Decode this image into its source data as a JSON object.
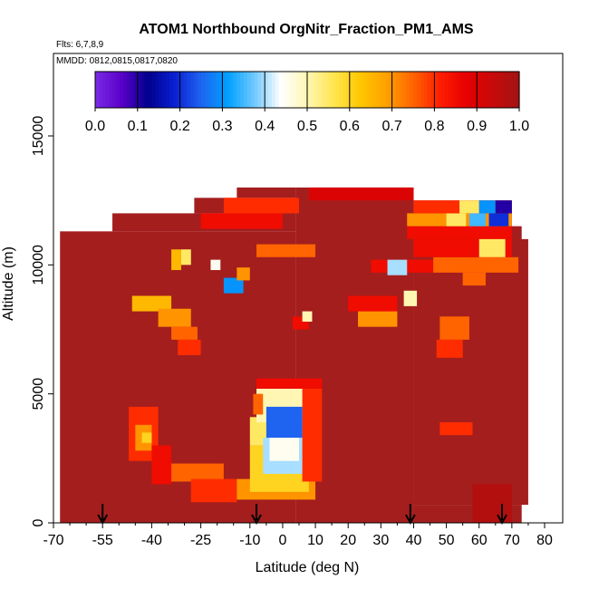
{
  "chart_data": {
    "type": "heatmap",
    "title": "ATOM1 Northbound OrgNitr_Fraction_PM1_AMS",
    "flights_label": "Flts: 6,7,8,9",
    "dates_label": "MMDD: 0812,0815,0817,0820",
    "xlabel": "Latitude (deg N)",
    "ylabel": "Altitude (m)",
    "xlim": [
      -70,
      80
    ],
    "ylim": [
      0,
      17500
    ],
    "x_ticks": [
      -70,
      -55,
      -40,
      -25,
      -10,
      0,
      10,
      20,
      30,
      40,
      50,
      60,
      70,
      80
    ],
    "x_tick_labels": [
      "-70",
      "-55",
      "-40",
      "-25",
      "-10",
      "0",
      "10",
      "20",
      "30",
      "40",
      "50",
      "60",
      "70",
      "80"
    ],
    "x_minor_ticks": [
      -65,
      -60,
      -50,
      -45,
      -35,
      -30,
      -20,
      -15,
      -5,
      5,
      15,
      25,
      35,
      45,
      55,
      65,
      75
    ],
    "y_ticks": [
      0,
      5000,
      10000,
      15000
    ],
    "y_tick_labels": [
      "0",
      "5000",
      "10000",
      "15000"
    ],
    "colorbar": {
      "ticks": [
        0.0,
        0.1,
        0.2,
        0.3,
        0.4,
        0.5,
        0.6,
        0.7,
        0.8,
        0.9,
        1.0
      ],
      "tick_labels": [
        "0.0",
        "0.1",
        "0.2",
        "0.3",
        "0.4",
        "0.5",
        "0.6",
        "0.7",
        "0.8",
        "0.9",
        "1.0"
      ],
      "colors": [
        "#7a2ae6",
        "#5a00c8",
        "#00008c",
        "#0a20d2",
        "#1e64f0",
        "#00a0ff",
        "#6ec8ff",
        "#ffffff",
        "#fff6b4",
        "#ffe650",
        "#ffc800",
        "#ffa000",
        "#ff6400",
        "#ff1e00",
        "#e60000",
        "#c80a0a",
        "#a01414"
      ]
    },
    "background_value": 0.97,
    "background_color": "#a41e1e",
    "coverage": [
      {
        "lat": [
          -68,
          4
        ],
        "alt": [
          0,
          11300
        ]
      },
      {
        "lat": [
          -52,
          4
        ],
        "alt": [
          11300,
          12000
        ]
      },
      {
        "lat": [
          -27,
          4
        ],
        "alt": [
          12000,
          12600
        ]
      },
      {
        "lat": [
          -14,
          4
        ],
        "alt": [
          12600,
          13000
        ]
      },
      {
        "lat": [
          4,
          40
        ],
        "alt": [
          0,
          13000
        ]
      },
      {
        "lat": [
          40,
          70
        ],
        "alt": [
          1200,
          12500
        ]
      },
      {
        "lat": [
          40,
          73
        ],
        "alt": [
          1200,
          11500
        ]
      },
      {
        "lat": [
          40,
          75
        ],
        "alt": [
          700,
          11000
        ]
      },
      {
        "lat": [
          40,
          73
        ],
        "alt": [
          0,
          700
        ]
      }
    ],
    "cells": [
      {
        "lat": [
          -47,
          -38
        ],
        "alt": [
          2400,
          4500
        ],
        "value": 0.8
      },
      {
        "lat": [
          -45,
          -40
        ],
        "alt": [
          2800,
          3800
        ],
        "value": 0.7
      },
      {
        "lat": [
          -43,
          -40
        ],
        "alt": [
          3100,
          3500
        ],
        "value": 0.6
      },
      {
        "lat": [
          -40,
          -34
        ],
        "alt": [
          1500,
          3000
        ],
        "value": 0.85
      },
      {
        "lat": [
          -34,
          -18
        ],
        "alt": [
          1600,
          2300
        ],
        "value": 0.75
      },
      {
        "lat": [
          -28,
          -14
        ],
        "alt": [
          800,
          1700
        ],
        "value": 0.8
      },
      {
        "lat": [
          -14,
          10
        ],
        "alt": [
          900,
          1700
        ],
        "value": 0.7
      },
      {
        "lat": [
          -10,
          8
        ],
        "alt": [
          1200,
          3000
        ],
        "value": 0.6
      },
      {
        "lat": [
          -10,
          7
        ],
        "alt": [
          3000,
          4100
        ],
        "value": 0.55
      },
      {
        "lat": [
          -8,
          8
        ],
        "alt": [
          3900,
          5200
        ],
        "value": 0.5
      },
      {
        "lat": [
          -6,
          6
        ],
        "alt": [
          1900,
          3300
        ],
        "value": 0.4
      },
      {
        "lat": [
          -5,
          6
        ],
        "alt": [
          3300,
          4500
        ],
        "value": 0.25
      },
      {
        "lat": [
          -4,
          5
        ],
        "alt": [
          2400,
          3300
        ],
        "value": 0.45
      },
      {
        "lat": [
          -9,
          -6
        ],
        "alt": [
          4200,
          5000
        ],
        "value": 0.75
      },
      {
        "lat": [
          6,
          12
        ],
        "alt": [
          1600,
          5200
        ],
        "value": 0.8
      },
      {
        "lat": [
          -8,
          12
        ],
        "alt": [
          5200,
          5600
        ],
        "value": 0.85
      },
      {
        "lat": [
          -46,
          -34
        ],
        "alt": [
          8200,
          8800
        ],
        "value": 0.65
      },
      {
        "lat": [
          -38,
          -28
        ],
        "alt": [
          7600,
          8300
        ],
        "value": 0.7
      },
      {
        "lat": [
          -34,
          -26
        ],
        "alt": [
          7100,
          7600
        ],
        "value": 0.75
      },
      {
        "lat": [
          -32,
          -25
        ],
        "alt": [
          6500,
          7100
        ],
        "value": 0.8
      },
      {
        "lat": [
          -34,
          -31
        ],
        "alt": [
          9800,
          10600
        ],
        "value": 0.65
      },
      {
        "lat": [
          -31,
          -28
        ],
        "alt": [
          10000,
          10600
        ],
        "value": 0.55
      },
      {
        "lat": [
          -22,
          -19
        ],
        "alt": [
          9800,
          10200
        ],
        "value": 0.45
      },
      {
        "lat": [
          -18,
          -12
        ],
        "alt": [
          8900,
          9500
        ],
        "value": 0.3
      },
      {
        "lat": [
          -14,
          -10
        ],
        "alt": [
          9400,
          9900
        ],
        "value": 0.7
      },
      {
        "lat": [
          -25,
          0
        ],
        "alt": [
          11400,
          12000
        ],
        "value": 0.85
      },
      {
        "lat": [
          -18,
          5
        ],
        "alt": [
          12000,
          12600
        ],
        "value": 0.8
      },
      {
        "lat": [
          -8,
          10
        ],
        "alt": [
          10300,
          10800
        ],
        "value": 0.75
      },
      {
        "lat": [
          3,
          8
        ],
        "alt": [
          7500,
          8000
        ],
        "value": 0.85
      },
      {
        "lat": [
          6,
          9
        ],
        "alt": [
          7800,
          8200
        ],
        "value": 0.5
      },
      {
        "lat": [
          23,
          35
        ],
        "alt": [
          7600,
          8200
        ],
        "value": 0.7
      },
      {
        "lat": [
          20,
          35
        ],
        "alt": [
          8200,
          8800
        ],
        "value": 0.85
      },
      {
        "lat": [
          37,
          41
        ],
        "alt": [
          8400,
          9000
        ],
        "value": 0.5
      },
      {
        "lat": [
          48,
          57
        ],
        "alt": [
          7100,
          8000
        ],
        "value": 0.75
      },
      {
        "lat": [
          47,
          55
        ],
        "alt": [
          6400,
          7100
        ],
        "value": 0.8
      },
      {
        "lat": [
          48,
          58
        ],
        "alt": [
          3400,
          3900
        ],
        "value": 0.8
      },
      {
        "lat": [
          27,
          46
        ],
        "alt": [
          9700,
          10200
        ],
        "value": 0.85
      },
      {
        "lat": [
          32,
          38
        ],
        "alt": [
          9600,
          10200
        ],
        "value": 0.4
      },
      {
        "lat": [
          46,
          72
        ],
        "alt": [
          9700,
          10300
        ],
        "value": 0.75
      },
      {
        "lat": [
          55,
          62
        ],
        "alt": [
          9200,
          9700
        ],
        "value": 0.75
      },
      {
        "lat": [
          40,
          70
        ],
        "alt": [
          10300,
          11000
        ],
        "value": 0.85
      },
      {
        "lat": [
          38,
          70
        ],
        "alt": [
          11000,
          11500
        ],
        "value": 0.85
      },
      {
        "lat": [
          60,
          68
        ],
        "alt": [
          10300,
          11000
        ],
        "value": 0.55
      },
      {
        "lat": [
          38,
          70
        ],
        "alt": [
          11500,
          12000
        ],
        "value": 0.7
      },
      {
        "lat": [
          50,
          56
        ],
        "alt": [
          11500,
          12000
        ],
        "value": 0.55
      },
      {
        "lat": [
          57,
          62
        ],
        "alt": [
          11500,
          12000
        ],
        "value": 0.35
      },
      {
        "lat": [
          63,
          69
        ],
        "alt": [
          11500,
          12000
        ],
        "value": 0.2
      },
      {
        "lat": [
          40,
          69
        ],
        "alt": [
          12000,
          12500
        ],
        "value": 0.8
      },
      {
        "lat": [
          54,
          60
        ],
        "alt": [
          12000,
          12500
        ],
        "value": 0.55
      },
      {
        "lat": [
          60,
          65
        ],
        "alt": [
          12000,
          12500
        ],
        "value": 0.3
      },
      {
        "lat": [
          65,
          70
        ],
        "alt": [
          12000,
          12500
        ],
        "value": 0.1
      },
      {
        "lat": [
          8,
          40
        ],
        "alt": [
          12500,
          13000
        ],
        "value": 0.9
      },
      {
        "lat": [
          58,
          70
        ],
        "alt": [
          0,
          1500
        ],
        "value": 0.97
      }
    ],
    "arrows_lat": [
      -55,
      -8,
      39,
      67
    ]
  }
}
